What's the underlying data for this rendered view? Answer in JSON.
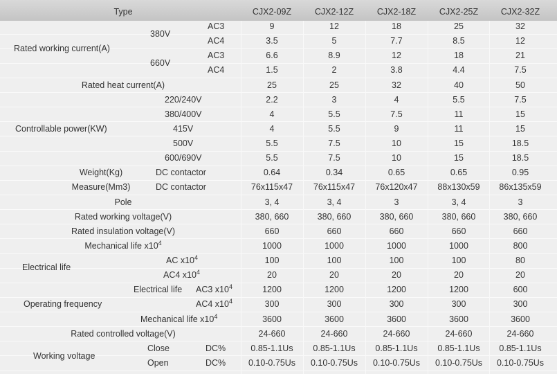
{
  "header": {
    "label": "Type",
    "models": [
      "CJX2-09Z",
      "CJX2-12Z",
      "CJX2-18Z",
      "CJX2-25Z",
      "CJX2-32Z"
    ]
  },
  "labels": [
    {
      "text": "Rated working current(A)"
    },
    {
      "text": "380V"
    },
    {
      "text": "AC3"
    },
    {
      "text": "AC4"
    },
    {
      "text": "660V"
    },
    {
      "text": "AC3"
    },
    {
      "text": "AC4"
    },
    {
      "text": "Rated heat current(A)"
    },
    {
      "text": "220/240V"
    },
    {
      "text": "380/400V"
    },
    {
      "text": "415V"
    },
    {
      "text": "500V"
    },
    {
      "text": "600/690V"
    },
    {
      "text": "Controllable power(KW)"
    },
    {
      "text": "Weight(Kg)"
    },
    {
      "text": "DC contactor"
    },
    {
      "text": "Measure(Mm3)"
    },
    {
      "text": "DC contactor"
    },
    {
      "text": "Pole"
    },
    {
      "text": "Rated working voltage(V)"
    },
    {
      "text": "Rated insulation voltage(V)"
    },
    {
      "text": "Mechanical life x10",
      "sup": "4"
    },
    {
      "text": "Electrical life"
    },
    {
      "text": "AC x10",
      "sup": "4"
    },
    {
      "text": "AC4 x10",
      "sup": "4"
    },
    {
      "text": "Electrical life"
    },
    {
      "text": "AC3 x10",
      "sup": "4"
    },
    {
      "text": "AC4 x10",
      "sup": "4"
    },
    {
      "text": "Operating frequency"
    },
    {
      "text": "Mechanical life x10",
      "sup": "4"
    },
    {
      "text": "Rated controlled voltage(V)"
    },
    {
      "text": "Working voltage"
    },
    {
      "text": "Close"
    },
    {
      "text": "DC%"
    },
    {
      "text": "Open"
    },
    {
      "text": "DC%"
    }
  ],
  "rows": [
    [
      9,
      12,
      18,
      25,
      32
    ],
    [
      3.5,
      5,
      7.7,
      8.5,
      12
    ],
    [
      6.6,
      8.9,
      12,
      18,
      21
    ],
    [
      1.5,
      2,
      3.8,
      4.4,
      7.5
    ],
    [
      25,
      25,
      32,
      40,
      50
    ],
    [
      2.2,
      3,
      4,
      5.5,
      7.5
    ],
    [
      4,
      5.5,
      7.5,
      11,
      15
    ],
    [
      4,
      5.5,
      9,
      11,
      15
    ],
    [
      5.5,
      7.5,
      10,
      15,
      18.5
    ],
    [
      5.5,
      7.5,
      10,
      15,
      18.5
    ],
    [
      0.64,
      0.34,
      0.65,
      0.65,
      0.95
    ],
    [
      "76x115x47",
      "76x115x47",
      "76x120x47",
      "88x130x59",
      "86x135x59"
    ],
    [
      "3, 4",
      "3, 4",
      "3",
      "3, 4",
      "3"
    ],
    [
      "380, 660",
      "380, 660",
      "380, 660",
      "380, 660",
      "380, 660"
    ],
    [
      660,
      660,
      660,
      660,
      660
    ],
    [
      1000,
      1000,
      1000,
      1000,
      800
    ],
    [
      100,
      100,
      100,
      100,
      80
    ],
    [
      20,
      20,
      20,
      20,
      20
    ],
    [
      1200,
      1200,
      1200,
      1200,
      600
    ],
    [
      300,
      300,
      300,
      300,
      300
    ],
    [
      3600,
      3600,
      3600,
      3600,
      3600
    ],
    [
      "24-660",
      "24-660",
      "24-660",
      "24-660",
      "24-660"
    ],
    [
      "0.85-1.1Us",
      "0.85-1.1Us",
      "0.85-1.1Us",
      "0.85-1.1Us",
      "0.85-1.1Us"
    ],
    [
      "0.10-0.75Us",
      "0.10-0.75Us",
      "0.10-0.75Us",
      "0.10-0.75Us",
      "0.10-0.75Us"
    ]
  ]
}
